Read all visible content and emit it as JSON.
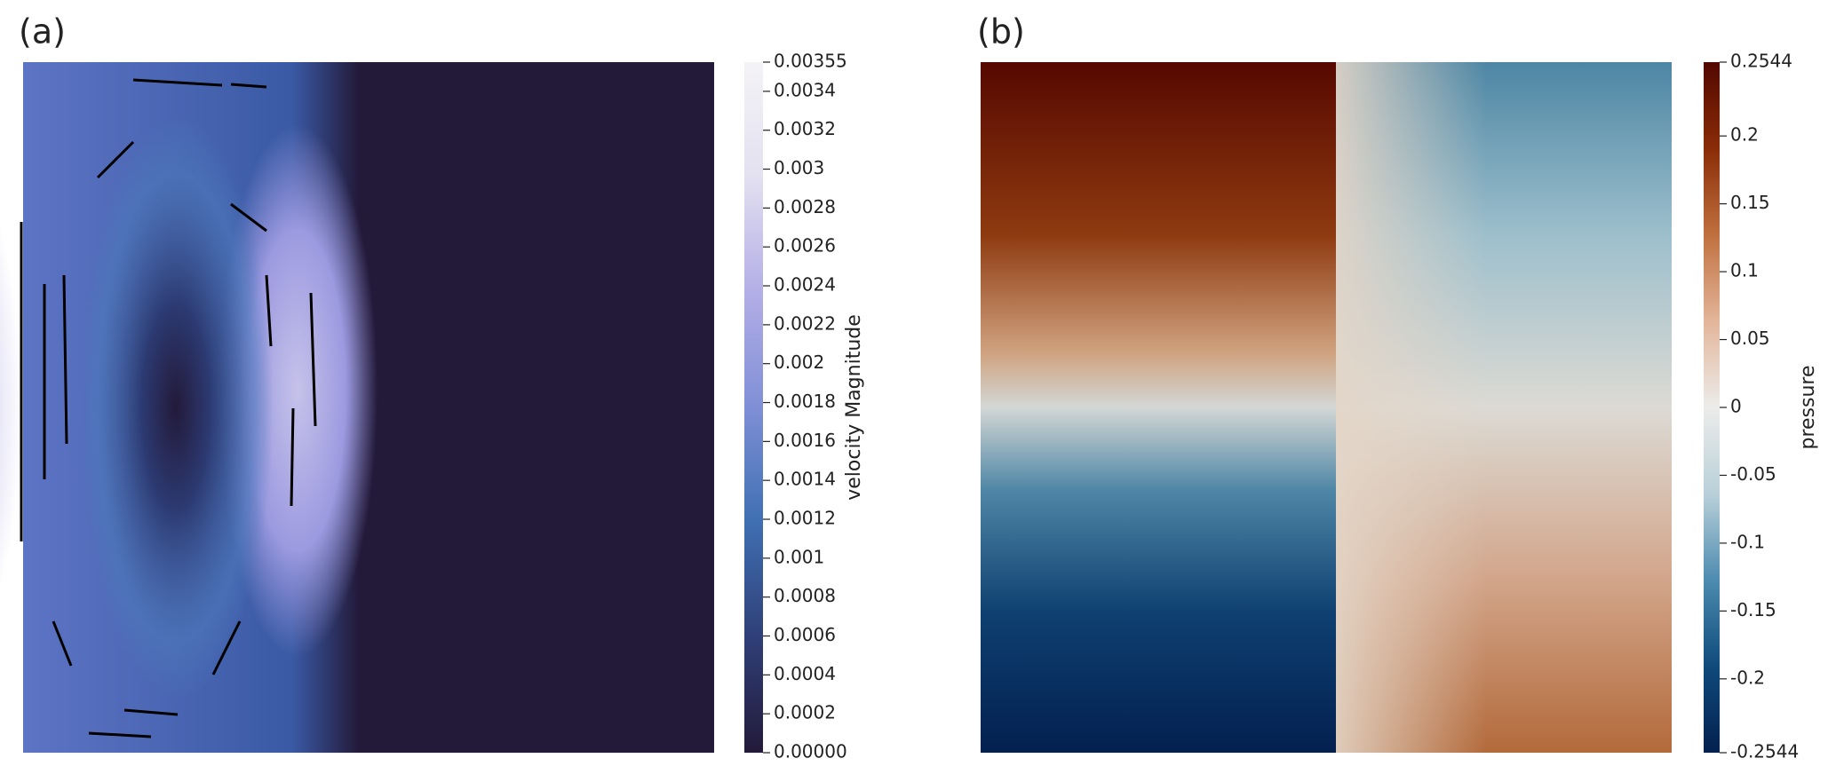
{
  "chart_data": [
    {
      "type": "field",
      "title": "(a)",
      "colorbar_label": "velocity Magnitude",
      "colormap": [
        "#231a3a",
        "#2f3f77",
        "#3f6fb2",
        "#7f8fd6",
        "#b3aee6",
        "#e3e0f0",
        "#f4f3f6"
      ],
      "clim": [
        0,
        0.00355
      ],
      "cticks": [
        {
          "value": 0,
          "label": "0.00000"
        },
        0.0002,
        0.0004,
        0.0006,
        0.0008,
        0.001,
        0.0012,
        0.0014,
        0.0016,
        0.0018,
        0.002,
        0.0022,
        0.0024,
        0.0026,
        0.0028,
        0.003,
        0.0032,
        0.0034,
        0.00355
      ]
    },
    {
      "type": "field",
      "title": "(b)",
      "colorbar_label": "pressure",
      "colormap": [
        "#03204f",
        "#0f4a7c",
        "#4d8bb0",
        "#b9d0d9",
        "#ececea",
        "#e3b59a",
        "#c0703f",
        "#8a2c08",
        "#520800"
      ],
      "clim": [
        -0.2544,
        0.2544
      ],
      "cticks": [
        -0.2544,
        -0.2,
        -0.15,
        -0.1,
        -0.05,
        0,
        0.05,
        0.1,
        0.15,
        0.2,
        0.2544
      ]
    }
  ]
}
